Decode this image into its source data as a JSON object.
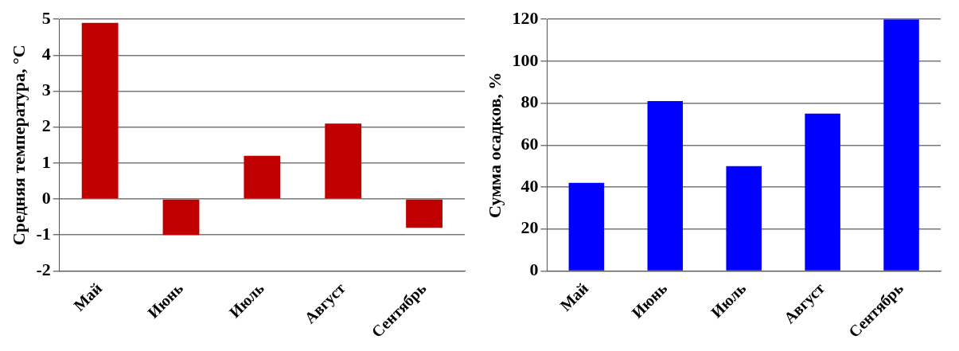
{
  "chart_data": [
    {
      "type": "bar",
      "ylabel": "Средняя температура, °С",
      "categories": [
        "Май",
        "Июнь",
        "Июль",
        "Август",
        "Сентябрь"
      ],
      "series": [
        {
          "color": "#c00000",
          "values": [
            4.9,
            -1.0,
            1.2,
            2.1,
            -0.8
          ]
        }
      ],
      "ylim": [
        -2,
        5
      ],
      "yticks": [
        -2,
        -1,
        0,
        1,
        2,
        3,
        4,
        5
      ],
      "grid": "y",
      "legend": false
    },
    {
      "type": "bar",
      "ylabel": "Сумма осадков, %",
      "categories": [
        "Май",
        "Июнь",
        "Июль",
        "Август",
        "Сентябрь"
      ],
      "series": [
        {
          "color": "#0000ff",
          "values": [
            42,
            81,
            50,
            75,
            120
          ]
        }
      ],
      "ylim": [
        0,
        120
      ],
      "yticks": [
        0,
        20,
        40,
        60,
        80,
        100,
        120
      ],
      "grid": "y",
      "legend": false
    }
  ]
}
